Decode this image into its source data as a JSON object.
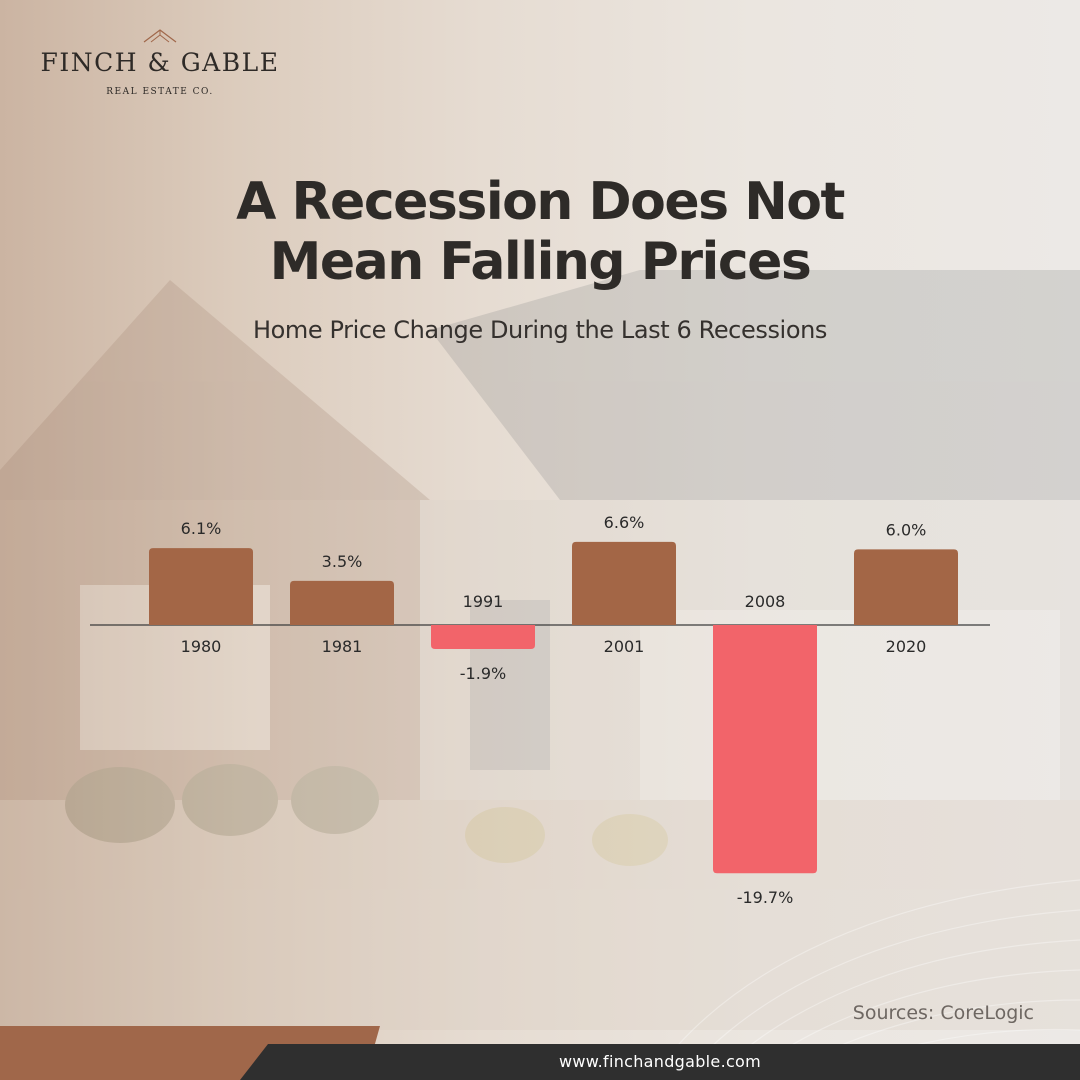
{
  "brand": {
    "name": "FINCH & GABLE",
    "tagline": "REAL ESTATE CO.",
    "website": "www.finchandgable.com",
    "accent_color": "#a0674a",
    "positive_color": "#a36646",
    "negative_color": "#f2646a"
  },
  "title_lines": [
    "A Recession Does Not",
    "Mean Falling Prices"
  ],
  "subtitle": "Home Price Change During the Last 6 Recessions",
  "source": "Sources: CoreLogic",
  "chart_data": {
    "type": "bar",
    "title": "A Recession Does Not Mean Falling Prices",
    "subtitle": "Home Price Change During the Last 6 Recessions",
    "categories": [
      "1980",
      "1981",
      "1991",
      "2001",
      "2008",
      "2020"
    ],
    "values": [
      6.1,
      3.5,
      -1.9,
      6.6,
      -19.7,
      6.0
    ],
    "value_labels": [
      "6.1%",
      "3.5%",
      "-1.9%",
      "6.6%",
      "-19.7%",
      "6.0%"
    ],
    "unit": "%",
    "ylim": [
      -19.7,
      6.6
    ],
    "grid": false,
    "legend": "none"
  }
}
